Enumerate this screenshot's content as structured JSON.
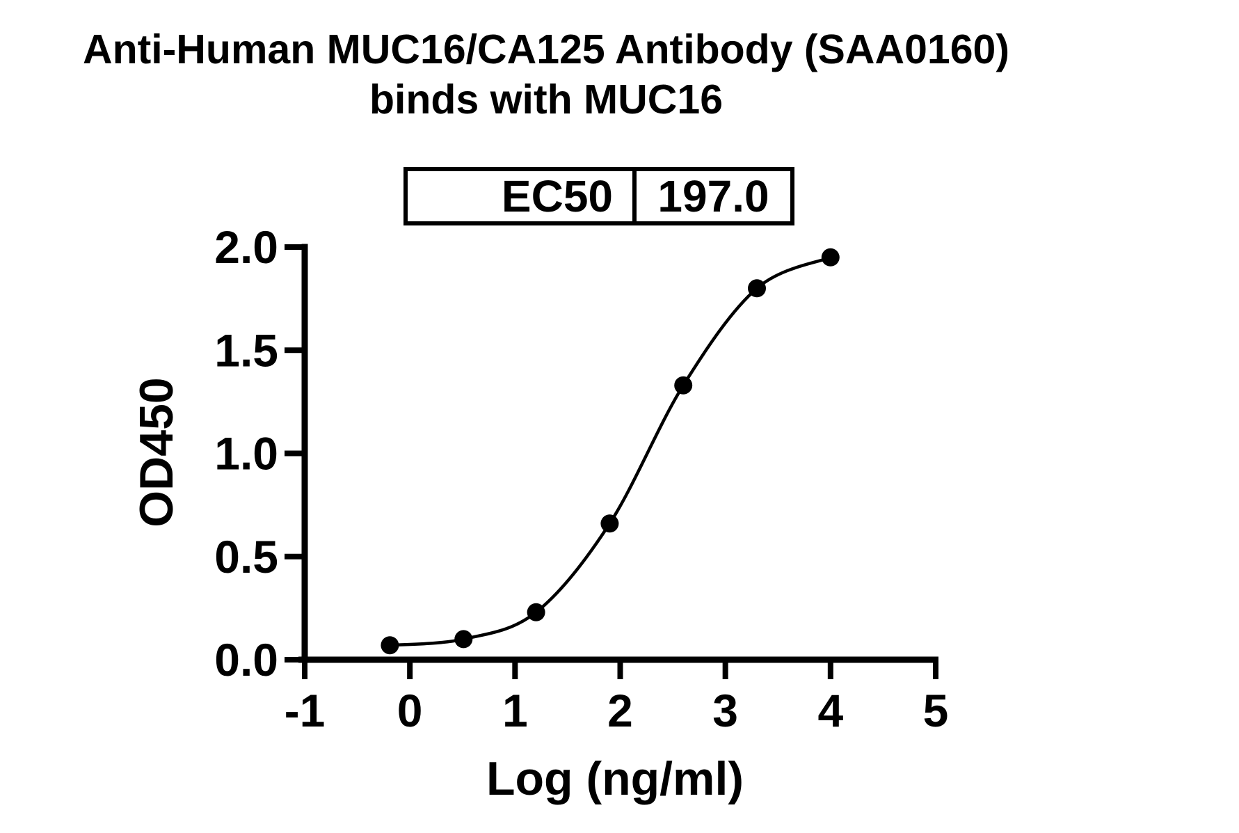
{
  "page": {
    "background_color": "#ffffff",
    "foreground_color": "#000000"
  },
  "chart_data": {
    "type": "scatter",
    "title": "Anti-Human MUC16/CA125 Antibody (SAA0160) binds with MUC16",
    "title_line1": "Anti-Human MUC16/CA125 Antibody (SAA0160)",
    "title_line2": "binds with MUC16",
    "ec50_table": {
      "label": "EC50",
      "value": "197.0"
    },
    "x_axis": {
      "label": "Log (ng/ml)",
      "min": -1,
      "max": 5,
      "ticks": [
        -1,
        0,
        1,
        2,
        3,
        4,
        5
      ],
      "tick_labels": [
        "-1",
        "0",
        "1",
        "2",
        "3",
        "4",
        "5"
      ]
    },
    "y_axis": {
      "label": "OD450",
      "min": 0,
      "max": 2,
      "ticks": [
        0,
        0.5,
        1,
        1.5,
        2
      ],
      "tick_labels": [
        "0.0",
        "0.5",
        "1.0",
        "1.5",
        "2.0"
      ]
    },
    "series": [
      {
        "color": "#000000",
        "marker": "filled-circle",
        "curve": "sigmoidal-fit",
        "points": [
          {
            "x": -0.19,
            "y": 0.07
          },
          {
            "x": 0.51,
            "y": 0.1
          },
          {
            "x": 1.2,
            "y": 0.23
          },
          {
            "x": 1.9,
            "y": 0.66
          },
          {
            "x": 2.6,
            "y": 1.33
          },
          {
            "x": 3.3,
            "y": 1.8
          },
          {
            "x": 4.0,
            "y": 1.95
          }
        ]
      }
    ],
    "grid": false,
    "legend": "none"
  }
}
